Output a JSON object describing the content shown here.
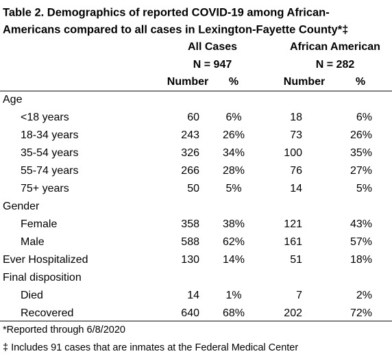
{
  "title": [
    "Table 2. Demographics of reported COVID-19 among African-",
    "Americans compared to all cases in Lexington-Fayette County*‡"
  ],
  "header": {
    "groups": [
      {
        "name": "All Cases",
        "n": "N = 947"
      },
      {
        "name": "African American",
        "n": "N = 282"
      }
    ],
    "columns": [
      "Number",
      "%",
      "Number",
      "%"
    ]
  },
  "rows": [
    {
      "label": "Age"
    },
    {
      "label": "<18 years",
      "cells": [
        60,
        "6%",
        18,
        "6%"
      ]
    },
    {
      "label": "18-34 years",
      "cells": [
        243,
        "26%",
        73,
        "26%"
      ]
    },
    {
      "label": "35-54 years",
      "cells": [
        326,
        "34%",
        100,
        "35%"
      ]
    },
    {
      "label": "55-74 years",
      "cells": [
        266,
        "28%",
        76,
        "27%"
      ]
    },
    {
      "label": "75+ years",
      "cells": [
        50,
        "5%",
        14,
        "5%"
      ]
    },
    {
      "label": "Gender"
    },
    {
      "label": "Female",
      "cells": [
        358,
        "38%",
        121,
        "43%"
      ]
    },
    {
      "label": "Male",
      "cells": [
        588,
        "62%",
        161,
        "57%"
      ]
    },
    {
      "label": "Ever Hospitalized",
      "cells": [
        130,
        "14%",
        51,
        "18%"
      ]
    },
    {
      "label": "Final disposition"
    },
    {
      "label": "Died",
      "cells": [
        14,
        "1%",
        7,
        "2%"
      ]
    },
    {
      "label": "Recovered",
      "cells": [
        640,
        "68%",
        202,
        "72%"
      ]
    }
  ],
  "footnotes": [
    "*Reported through 6/8/2020",
    "‡ Includes 91 cases that are inmates at the Federal Medical Center"
  ]
}
